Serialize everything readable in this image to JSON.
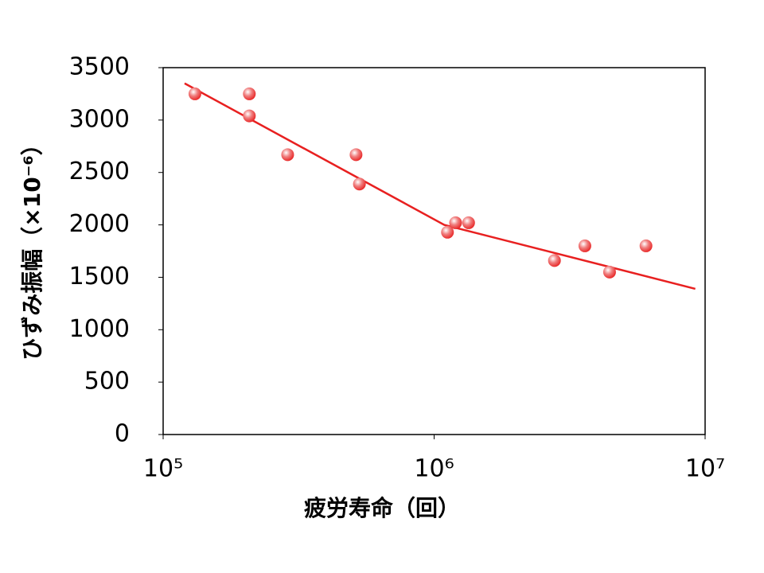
{
  "chart_data": {
    "type": "scatter",
    "xlabel": "疲労寿命（回）",
    "ylabel": "ひずみ振幅（×10⁻⁶）",
    "x_scale": "log",
    "xlim": [
      100000,
      10000000
    ],
    "xticks": [
      {
        "value": 100000,
        "label": "10⁵"
      },
      {
        "value": 1000000,
        "label": "10⁶"
      },
      {
        "value": 10000000,
        "label": "10⁷"
      }
    ],
    "ylim": [
      0,
      3500
    ],
    "yticks": [
      0,
      500,
      1000,
      1500,
      2000,
      2500,
      3000,
      3500
    ],
    "grid": false,
    "series": [
      {
        "type": "scatter",
        "color": "#e82020",
        "x": [
          131000,
          208000,
          208000,
          288000,
          515000,
          530000,
          1120000,
          1200000,
          1340000,
          2780000,
          3600000,
          4440000,
          6050000
        ],
        "values": [
          3250,
          3250,
          3040,
          2670,
          2670,
          2390,
          1930,
          2020,
          2020,
          1660,
          1800,
          1550,
          1800
        ]
      },
      {
        "type": "line",
        "color": "#e82020",
        "x": [
          120000,
          1090000,
          9200000
        ],
        "values": [
          3350,
          2000,
          1390
        ]
      }
    ]
  }
}
